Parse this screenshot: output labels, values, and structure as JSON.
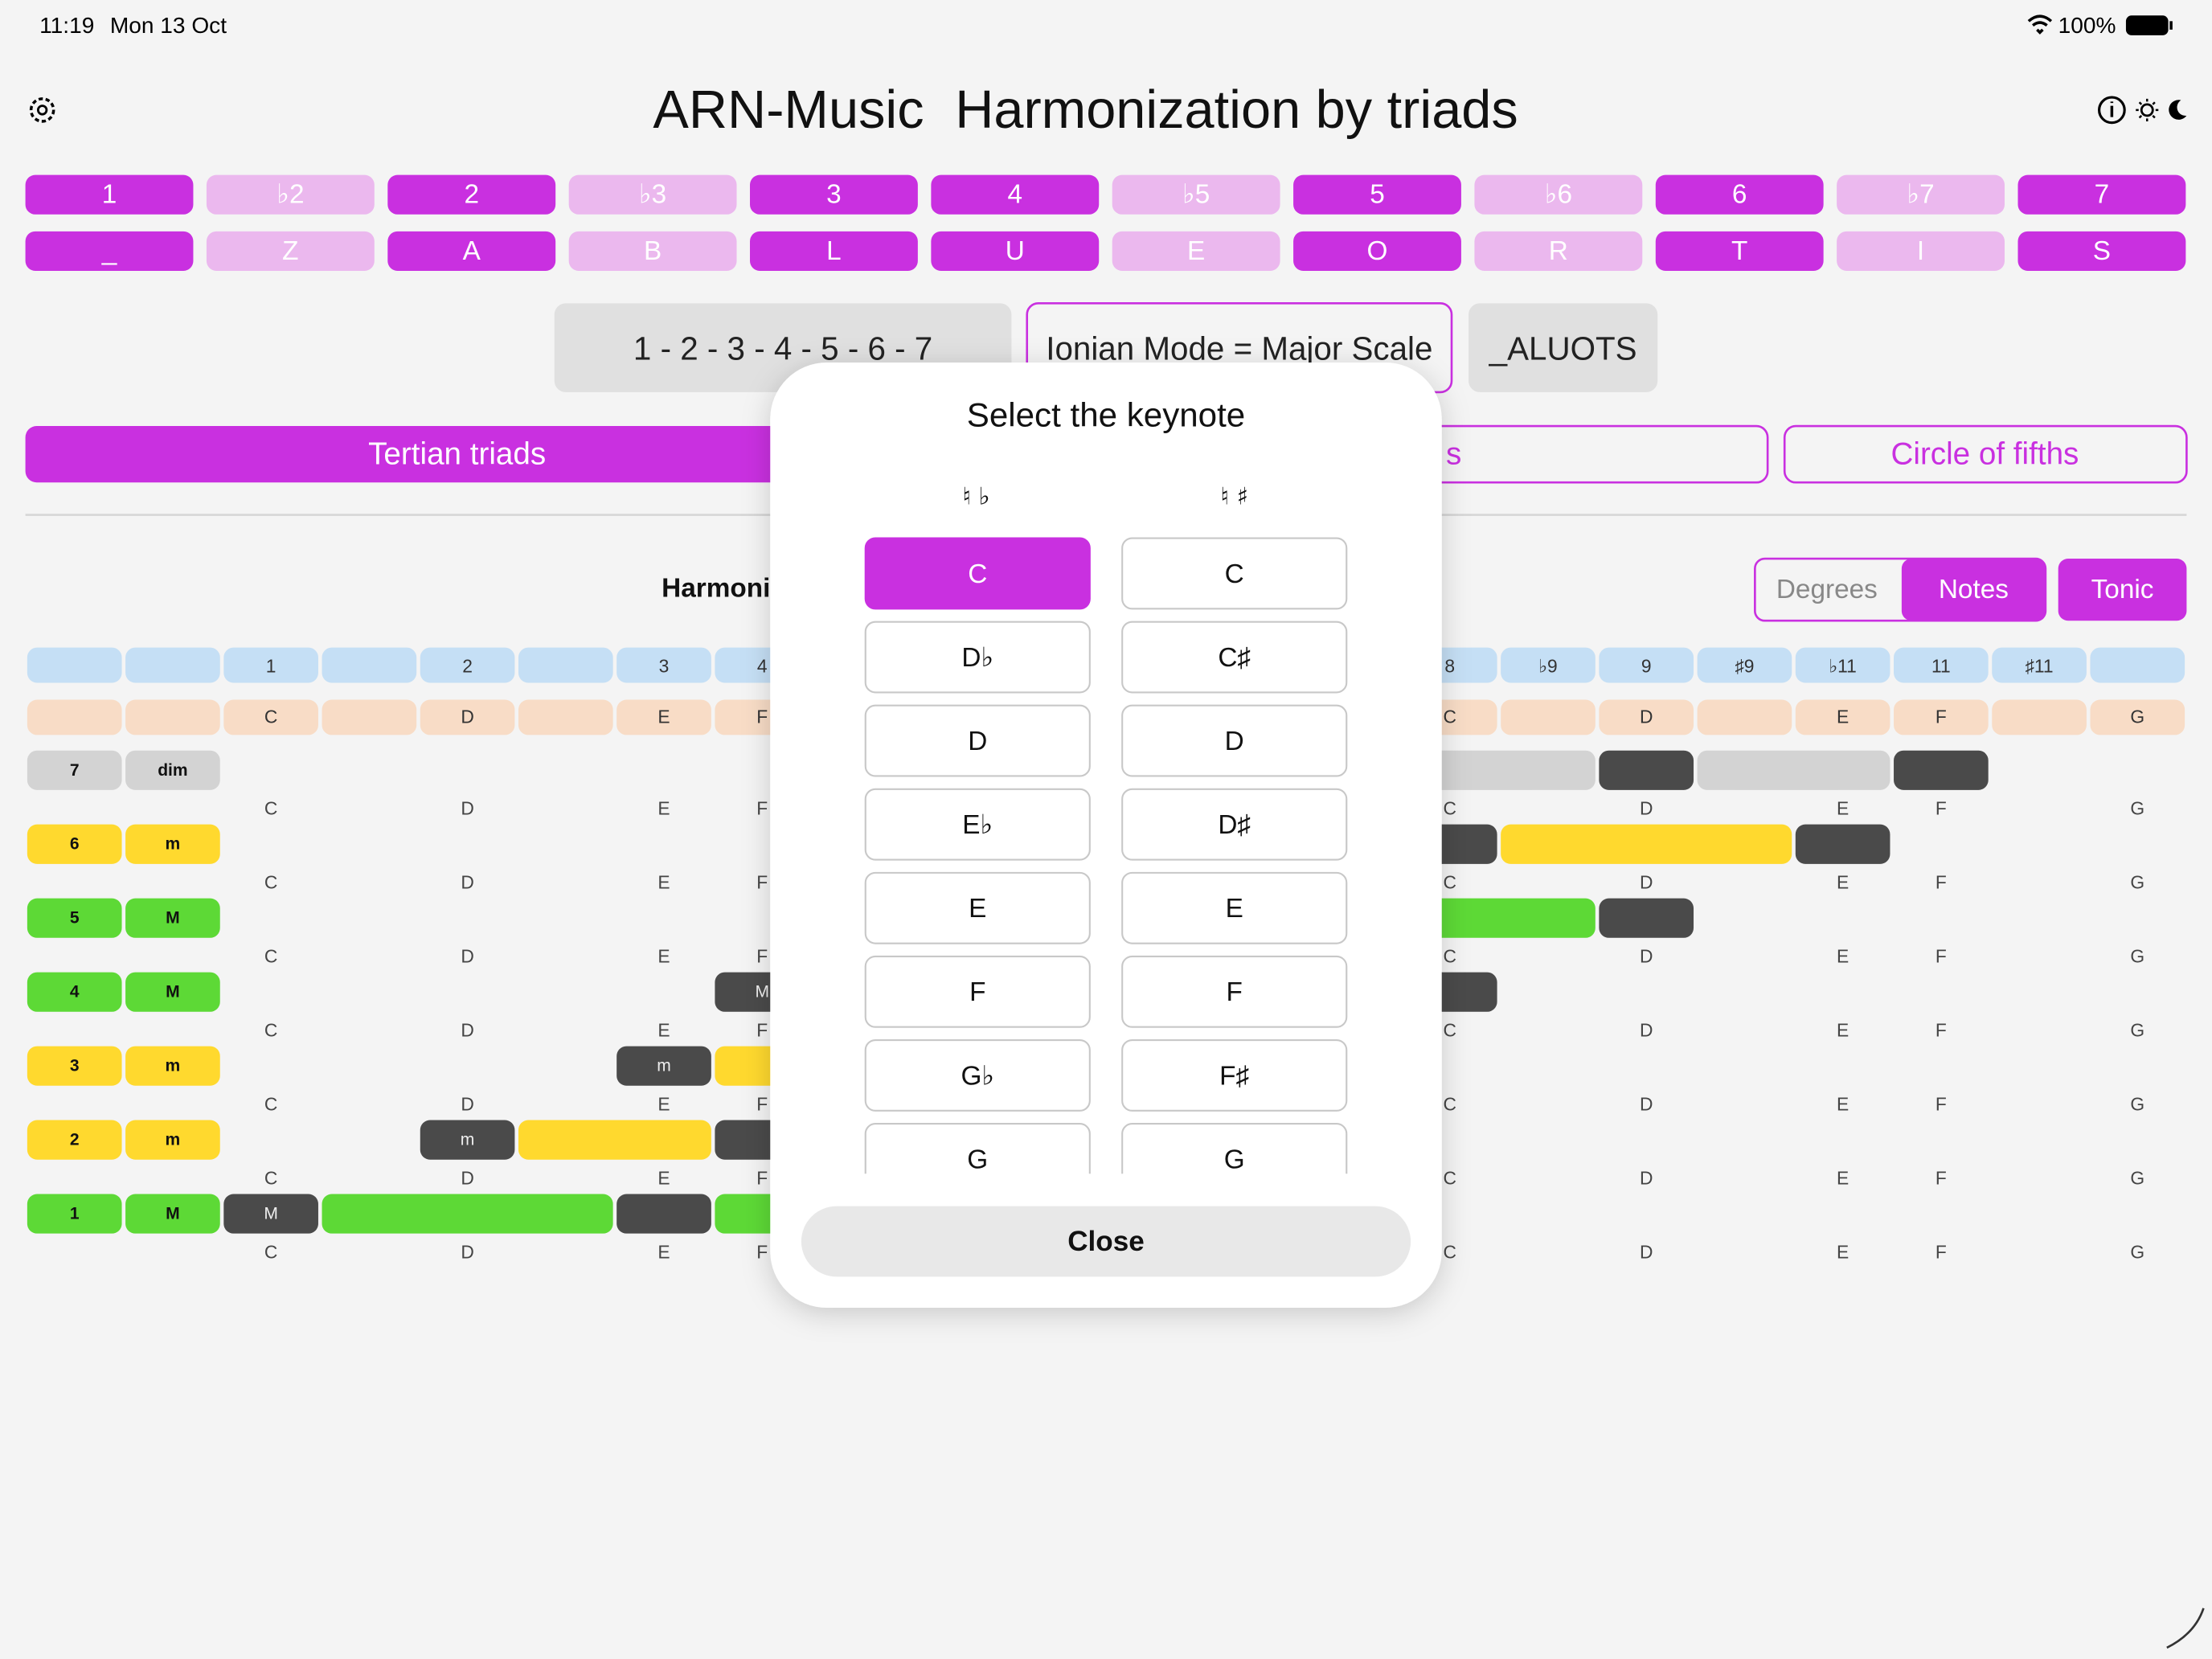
{
  "status_bar": {
    "time": "11:19",
    "date": "Mon 13 Oct",
    "battery": "100%"
  },
  "header": {
    "app_name": "ARN-Music",
    "title": "Harmonization by triads"
  },
  "scale_degrees": {
    "degrees": [
      "1",
      "♭2",
      "2",
      "♭3",
      "3",
      "4",
      "♭5",
      "5",
      "♭6",
      "6",
      "♭7",
      "7"
    ],
    "letters": [
      "_",
      "Z",
      "A",
      "B",
      "L",
      "U",
      "E",
      "O",
      "R",
      "T",
      "I",
      "S"
    ],
    "active": [
      true,
      false,
      true,
      false,
      true,
      true,
      false,
      true,
      false,
      true,
      false,
      true
    ]
  },
  "scale_info": {
    "formula": "1 - 2 - 3 - 4 - 5 - 6 - 7",
    "mode": "Ionian Mode = Major Scale",
    "code": "_ALUOTS"
  },
  "tabs": [
    "Tertian triads",
    "s",
    "Circle of fifths"
  ],
  "section_label": "Harmoni",
  "view_toggle": {
    "options": [
      "Degrees",
      "Notes"
    ],
    "selected": 1,
    "tonic": "Tonic"
  },
  "grid": {
    "intervals": [
      null,
      null,
      "1",
      null,
      "2",
      null,
      "3",
      "4",
      null,
      null,
      null,
      null,
      null,
      null,
      "8",
      "♭9",
      "9",
      "♯9",
      "♭11",
      "11",
      "♯11",
      null
    ],
    "notes": [
      null,
      null,
      "C",
      null,
      "D",
      null,
      "E",
      "F",
      null,
      null,
      null,
      null,
      null,
      null,
      "C",
      null,
      "D",
      null,
      "E",
      "F",
      null,
      "G"
    ]
  },
  "triads": [
    {
      "degree": "7",
      "quality": "dim",
      "color": "#d3d3d3"
    },
    {
      "degree": "6",
      "quality": "m",
      "color": "#ffd92e"
    },
    {
      "degree": "5",
      "quality": "M",
      "color": "#5dd936"
    },
    {
      "degree": "4",
      "quality": "M",
      "color": "#5dd936",
      "chord_label": "M"
    },
    {
      "degree": "3",
      "quality": "m",
      "color": "#ffd92e",
      "chord_label": "m"
    },
    {
      "degree": "2",
      "quality": "m",
      "color": "#ffd92e",
      "chord_label": "m"
    },
    {
      "degree": "1",
      "quality": "M",
      "color": "#5dd936",
      "chord_label": "M"
    }
  ],
  "modal": {
    "title": "Select the keynote",
    "flat_header": "♮   ♭",
    "sharp_header": "♮   ♯",
    "flat_keys": [
      "C",
      "D♭",
      "D",
      "E♭",
      "E",
      "F",
      "G♭",
      "G"
    ],
    "sharp_keys": [
      "C",
      "C♯",
      "D",
      "D♯",
      "E",
      "F",
      "F♯",
      "G"
    ],
    "selected_flat": 0,
    "close": "Close"
  }
}
